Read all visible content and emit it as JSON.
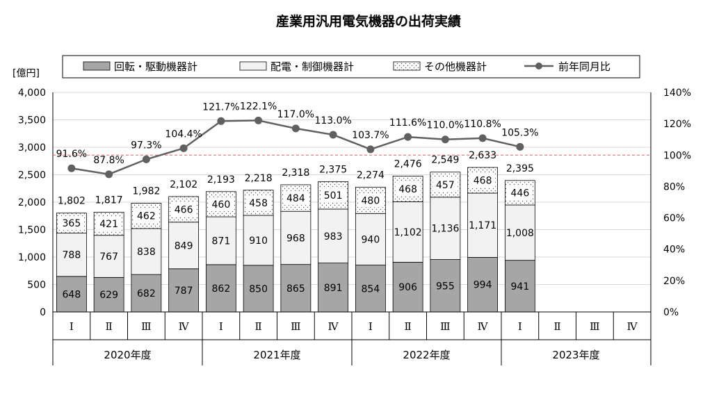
{
  "chart_data": {
    "type": "bar",
    "title": "産業用汎用電気機器の出荷実績",
    "ylabel": "[億円]",
    "ylim": [
      0,
      4000
    ],
    "y2lim": [
      0,
      140
    ],
    "y_ticks": [
      "0",
      "500",
      "1,000",
      "1,500",
      "2,000",
      "2,500",
      "3,000",
      "3,500",
      "4,000"
    ],
    "y2_ticks": [
      "0%",
      "20%",
      "40%",
      "60%",
      "80%",
      "100%",
      "120%",
      "140%"
    ],
    "reference_line": 100,
    "years": [
      "2020年度",
      "2021年度",
      "2022年度",
      "2023年度"
    ],
    "quarters": [
      "Ⅰ",
      "Ⅱ",
      "Ⅲ",
      "Ⅳ"
    ],
    "x_count": 16,
    "series": [
      {
        "name": "回転・駆動機器計",
        "color": "#a6a6a6",
        "values": [
          648,
          629,
          682,
          787,
          862,
          850,
          865,
          891,
          854,
          906,
          955,
          994,
          941,
          null,
          null,
          null
        ],
        "labels": [
          "648",
          "629",
          "682",
          "787",
          "862",
          "850",
          "865",
          "891",
          "854",
          "906",
          "955",
          "994",
          "941",
          "",
          "",
          ""
        ]
      },
      {
        "name": "配電・制御機器計",
        "color": "#f2f2f2",
        "values": [
          788,
          767,
          838,
          849,
          871,
          910,
          968,
          983,
          940,
          1102,
          1136,
          1171,
          1008,
          null,
          null,
          null
        ],
        "labels": [
          "788",
          "767",
          "838",
          "849",
          "871",
          "910",
          "968",
          "983",
          "940",
          "1,102",
          "1,136",
          "1,171",
          "1,008",
          "",
          "",
          ""
        ]
      },
      {
        "name": "その他機器計",
        "color": "#ffffff",
        "values": [
          365,
          421,
          462,
          466,
          460,
          458,
          484,
          501,
          480,
          468,
          457,
          468,
          446,
          null,
          null,
          null
        ],
        "labels": [
          "365",
          "421",
          "462",
          "466",
          "460",
          "458",
          "484",
          "501",
          "480",
          "468",
          "457",
          "468",
          "446",
          "",
          "",
          ""
        ]
      }
    ],
    "totals": [
      1802,
      1817,
      1982,
      2102,
      2193,
      2218,
      2318,
      2375,
      2274,
      2476,
      2549,
      2633,
      2395,
      null,
      null,
      null
    ],
    "total_labels": [
      "1,802",
      "1,817",
      "1,982",
      "2,102",
      "2,193",
      "2,218",
      "2,318",
      "2,375",
      "2,274",
      "2,476",
      "2,549",
      "2,633",
      "2,395",
      "",
      "",
      ""
    ],
    "yoy": {
      "name": "前年同月比",
      "color": "#606060",
      "values": [
        91.6,
        87.8,
        97.3,
        104.4,
        121.7,
        122.1,
        117.0,
        113.0,
        103.7,
        111.6,
        110.0,
        110.8,
        105.3,
        null,
        null,
        null
      ],
      "labels": [
        "91.6%",
        "87.8%",
        "97.3%",
        "104.4%",
        "121.7%",
        "122.1%",
        "117.0%",
        "113.0%",
        "103.7%",
        "111.6%",
        "110.0%",
        "110.8%",
        "105.3%",
        "",
        "",
        ""
      ]
    },
    "legend_placement": "top",
    "grid": true
  }
}
